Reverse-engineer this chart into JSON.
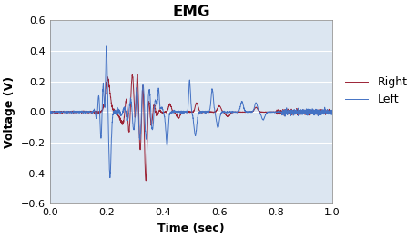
{
  "title": "EMG",
  "xlabel": "Time (sec)",
  "ylabel": "Voltage (V)",
  "xlim": [
    0,
    1
  ],
  "ylim": [
    -0.6,
    0.6
  ],
  "xticks": [
    0,
    0.2,
    0.4,
    0.6,
    0.8,
    1
  ],
  "yticks": [
    -0.6,
    -0.4,
    -0.2,
    0,
    0.2,
    0.4,
    0.6
  ],
  "left_color": "#4472C4",
  "right_color": "#9B2335",
  "legend_labels": [
    "Left",
    "Right"
  ],
  "plot_bg_color": "#DCE6F1",
  "fig_bg_color": "#FFFFFF",
  "grid_color": "#FFFFFF",
  "title_fontsize": 12,
  "label_fontsize": 9,
  "tick_fontsize": 8,
  "legend_fontsize": 9
}
